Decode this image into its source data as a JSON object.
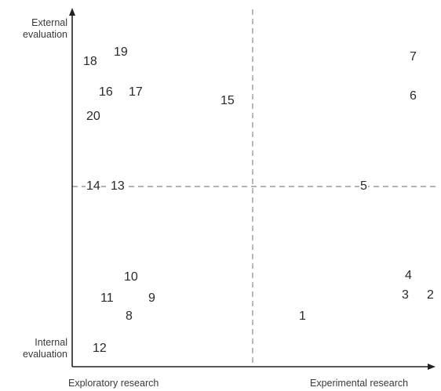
{
  "axes": {
    "y_top_line1": "External",
    "y_top_line2": "evaluation",
    "y_bottom_line1": "Internal",
    "y_bottom_line2": "evaluation",
    "x_left": "Exploratory research",
    "x_right": "Experimental research"
  },
  "points": [
    "1",
    "2",
    "3",
    "4",
    "5",
    "6",
    "7",
    "8",
    "9",
    "10",
    "11",
    "12",
    "13",
    "14",
    "15",
    "16",
    "17",
    "18",
    "19",
    "20"
  ],
  "colors": {
    "axis": "#222222",
    "divider": "#9a9a9a",
    "text": "#2a2a2a"
  }
}
